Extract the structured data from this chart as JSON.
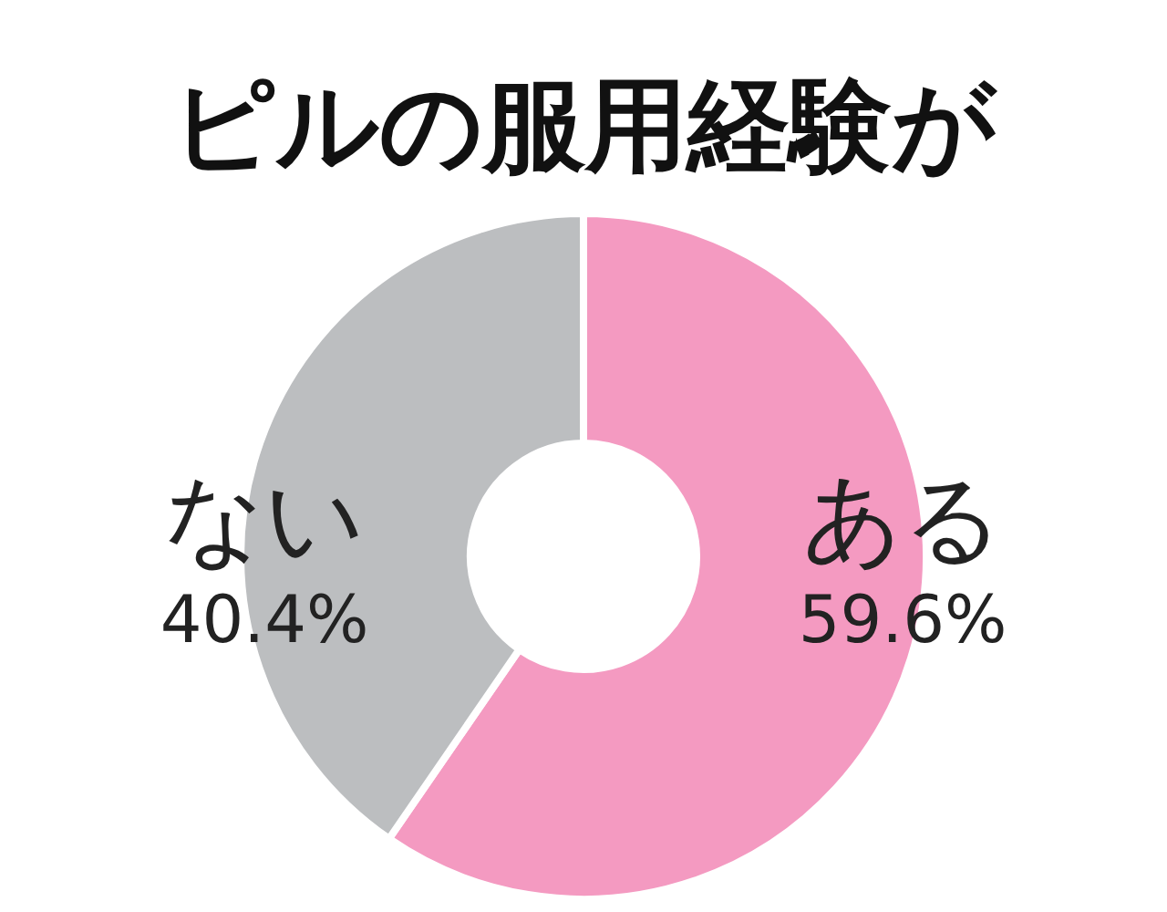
{
  "chart_data": {
    "type": "donut",
    "title": "ピルの服用経験が",
    "categories": [
      "ある",
      "ない"
    ],
    "values": [
      59.6,
      40.4
    ],
    "colors": [
      "#f49ac1",
      "#bcbec0"
    ],
    "value_labels": [
      "59.6%",
      "40.4%"
    ]
  }
}
